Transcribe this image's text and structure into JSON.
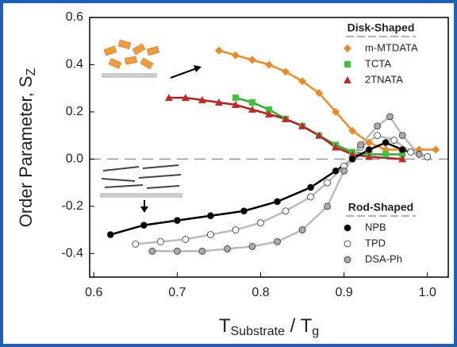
{
  "chart_data": {
    "type": "scatter",
    "xlabel": [
      "T",
      "Substrate",
      " / T",
      "g"
    ],
    "ylabel": [
      "Order Parameter, S",
      "Z"
    ],
    "xlim": [
      0.595,
      1.025
    ],
    "ylim": [
      -0.5,
      0.6
    ],
    "xticks": [
      0.6,
      0.7,
      0.8,
      0.9,
      {
        "value": 1,
        "label": "1.0"
      }
    ],
    "yticks": [
      -0.4,
      -0.2,
      {
        "value": 0,
        "label": "0.0"
      },
      0.2,
      0.4,
      0.6
    ],
    "legend_titles": [
      "Disk-Shaped",
      "Rod-Shaped"
    ],
    "series": [
      {
        "name": "m-MTDATA",
        "marker": "diamond",
        "color": "#e8892c",
        "line_color": "#f08a24",
        "x": [
          0.75,
          0.77,
          0.79,
          0.81,
          0.83,
          0.85,
          0.87,
          0.89,
          0.91,
          0.93,
          0.95,
          0.97,
          0.99,
          1.01
        ],
        "values": [
          0.46,
          0.44,
          0.42,
          0.4,
          0.37,
          0.33,
          0.28,
          0.2,
          0.12,
          0.07,
          0.04,
          0.04,
          0.04,
          0.04
        ]
      },
      {
        "name": "TCTA",
        "marker": "square",
        "color": "#3cc43c",
        "line_color": "#2ea82e",
        "x": [
          0.77,
          0.79,
          0.81,
          0.83,
          0.85,
          0.87,
          0.89,
          0.91,
          0.93,
          0.95,
          0.97
        ],
        "values": [
          0.26,
          0.24,
          0.21,
          0.17,
          0.14,
          0.1,
          0.06,
          0.03,
          0.02,
          0.02,
          0.02
        ]
      },
      {
        "name": "2TNATA",
        "marker": "triangle",
        "color": "#c0282a",
        "line_color": "#b81c1c",
        "x": [
          0.69,
          0.71,
          0.73,
          0.75,
          0.77,
          0.79,
          0.81,
          0.83,
          0.85,
          0.87,
          0.89,
          0.91,
          0.93,
          0.97
        ],
        "values": [
          0.26,
          0.26,
          0.25,
          0.24,
          0.23,
          0.21,
          0.19,
          0.17,
          0.14,
          0.1,
          0.05,
          0.02,
          0.01,
          0.0
        ]
      },
      {
        "name": "NPB",
        "marker": "circle",
        "color": "#000000",
        "line_color": "#000000",
        "x": [
          0.62,
          0.66,
          0.7,
          0.74,
          0.78,
          0.82,
          0.86,
          0.89,
          0.91,
          0.93,
          0.95,
          0.97,
          1.0
        ],
        "values": [
          -0.32,
          -0.28,
          -0.26,
          -0.24,
          -0.22,
          -0.18,
          -0.12,
          -0.05,
          0.0,
          0.04,
          0.07,
          0.04,
          0.01
        ]
      },
      {
        "name": "TPD",
        "marker": "circle",
        "color": "#ffffff",
        "line_color": "#bbbbbb",
        "x": [
          0.65,
          0.68,
          0.71,
          0.74,
          0.77,
          0.8,
          0.83,
          0.86,
          0.88,
          0.9,
          0.92,
          0.94,
          0.96,
          0.98,
          1.0
        ],
        "values": [
          -0.36,
          -0.35,
          -0.34,
          -0.32,
          -0.3,
          -0.27,
          -0.22,
          -0.16,
          -0.1,
          -0.03,
          0.05,
          0.1,
          0.08,
          0.03,
          0.01
        ]
      },
      {
        "name": "DSA-Ph",
        "marker": "circle",
        "color": "#aaaaaa",
        "line_color": "#bbbbbb",
        "x": [
          0.67,
          0.7,
          0.73,
          0.76,
          0.79,
          0.82,
          0.85,
          0.88,
          0.9,
          0.92,
          0.94,
          0.955,
          0.97,
          0.99
        ],
        "values": [
          -0.39,
          -0.39,
          -0.39,
          -0.38,
          -0.37,
          -0.35,
          -0.3,
          -0.2,
          -0.05,
          0.06,
          0.14,
          0.18,
          0.1,
          0.02
        ]
      }
    ]
  }
}
